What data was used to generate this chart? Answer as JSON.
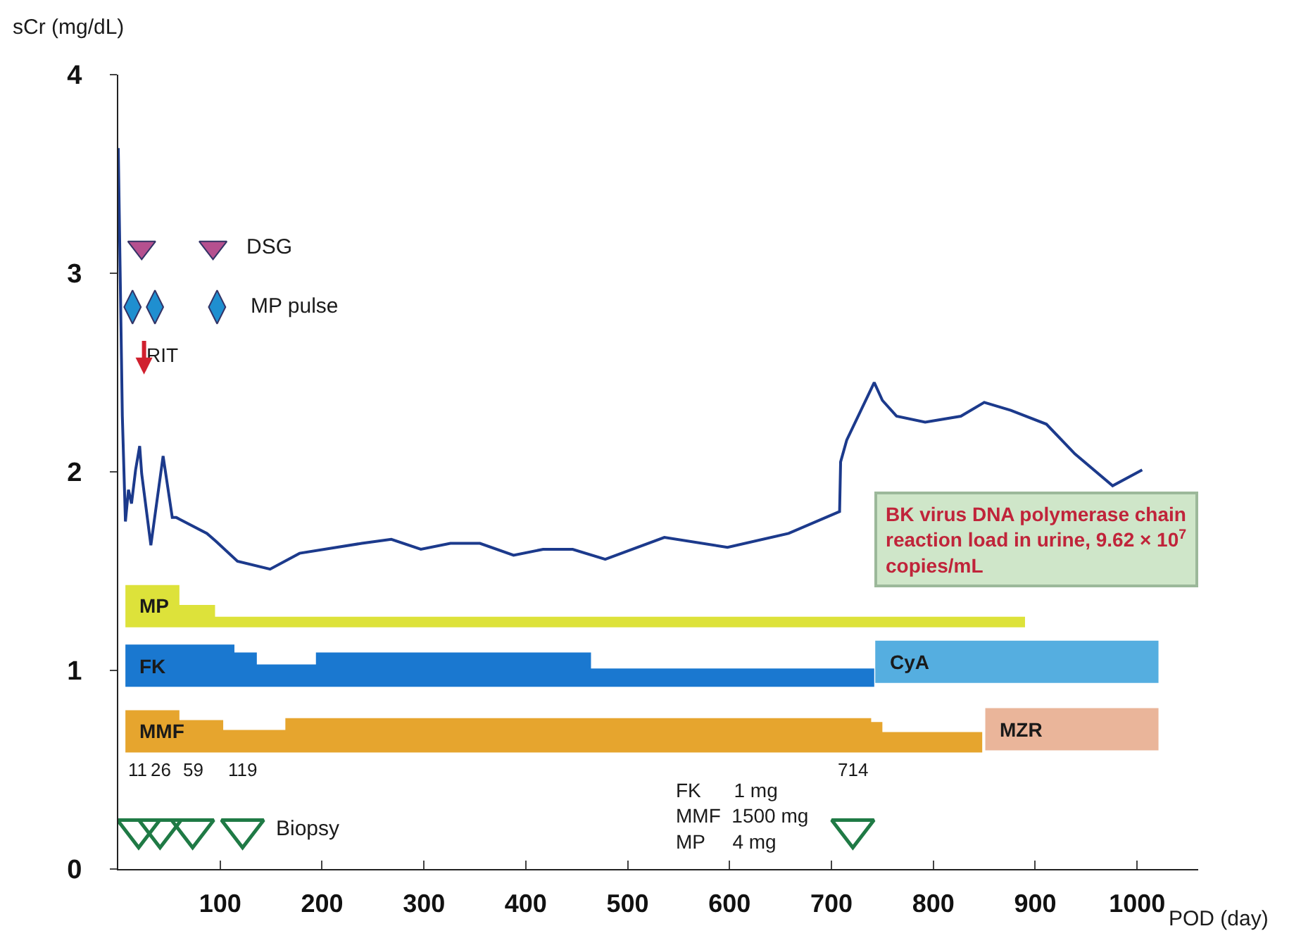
{
  "chart_data": {
    "type": "line",
    "ylabel": "sCr (mg/dL)",
    "xlabel": "POD (day)",
    "xlim": [
      0,
      1060
    ],
    "xticks": [
      100,
      200,
      300,
      400,
      500,
      600,
      700,
      800,
      900,
      1000
    ],
    "ylim": [
      0,
      4
    ],
    "yticks": [
      0,
      1,
      2,
      3,
      4
    ],
    "marker": "none",
    "series": [
      {
        "color": "#1c3a8c",
        "x": [
          0,
          4,
          7,
          10,
          13,
          17,
          21,
          23,
          32,
          44,
          53,
          57,
          87,
          96,
          117,
          149,
          178,
          239,
          268,
          297,
          326,
          355,
          388,
          417,
          446,
          478,
          536,
          598,
          658,
          708,
          709,
          715,
          742,
          750,
          764,
          792,
          827,
          850,
          876,
          911,
          939,
          976,
          1005
        ],
        "values": [
          3.63,
          2.28,
          1.75,
          1.91,
          1.84,
          2.01,
          2.13,
          1.99,
          1.63,
          2.08,
          1.77,
          1.77,
          1.69,
          1.65,
          1.55,
          1.51,
          1.59,
          1.64,
          1.66,
          1.61,
          1.64,
          1.64,
          1.58,
          1.61,
          1.61,
          1.56,
          1.67,
          1.62,
          1.69,
          1.8,
          2.05,
          2.16,
          2.45,
          2.36,
          2.28,
          2.25,
          2.28,
          2.35,
          2.31,
          2.24,
          2.09,
          1.93,
          2.01
        ]
      },
      {
        "type": "area",
        "name": "MP",
        "color": "#dde23a",
        "x": [
          7,
          60,
          60,
          95,
          95,
          890
        ],
        "values": [
          1.43,
          1.43,
          1.33,
          1.33,
          1.27,
          1.27
        ]
      },
      {
        "type": "area",
        "name": "FK",
        "color": "#1a78d0",
        "x": [
          7,
          114,
          114,
          136,
          136,
          194,
          194,
          464,
          464,
          742
        ],
        "values": [
          1.13,
          1.13,
          1.09,
          1.09,
          1.03,
          1.03,
          1.09,
          1.09,
          1.01,
          1.01
        ]
      },
      {
        "type": "area",
        "name": "CyA",
        "color": "#55aee0",
        "x": [
          743,
          1021
        ],
        "values": [
          1.15,
          1.15
        ]
      },
      {
        "type": "area",
        "name": "MMF",
        "color": "#e6a52e",
        "x": [
          7,
          60,
          60,
          103,
          103,
          164,
          164,
          739,
          739,
          750,
          750,
          848
        ],
        "values": [
          0.8,
          0.8,
          0.75,
          0.75,
          0.7,
          0.7,
          0.76,
          0.76,
          0.74,
          0.74,
          0.69,
          0.69
        ]
      },
      {
        "type": "area",
        "name": "MZR",
        "color": "#eab59a",
        "x": [
          851,
          1021
        ],
        "values": [
          0.81,
          0.81
        ]
      },
      {
        "type": "scatter",
        "name": "DSG",
        "color": "#b5508f",
        "marker": "triangle",
        "x": [
          23,
          93
        ],
        "values": [
          3.13,
          3.13
        ]
      },
      {
        "type": "scatter",
        "name": "MP pulse",
        "color": "#1f8fd0",
        "marker": "diamond",
        "x": [
          14,
          36,
          97
        ],
        "values": [
          2.83,
          2.83,
          2.83
        ]
      },
      {
        "type": "scatter",
        "name": "Biopsy",
        "color": "#1f7a45",
        "marker": "triangle",
        "x": [
          20,
          41,
          73,
          122
        ],
        "values": [
          0.2,
          0.2,
          0.2,
          0.2
        ]
      },
      {
        "type": "scatter",
        "color": "#1f7a45",
        "marker": "triangle",
        "x": [
          721
        ],
        "values": [
          0.2
        ]
      }
    ],
    "annotations": [
      "RIT",
      "11",
      "26",
      "59",
      "119",
      "FK      1 mg\nMMF  1500 mg\nMP     4 mg",
      "714",
      "BK virus DNA polymerase chain reaction load in urine, 9.62 × 10$^{7}$ copies/mL"
    ]
  }
}
